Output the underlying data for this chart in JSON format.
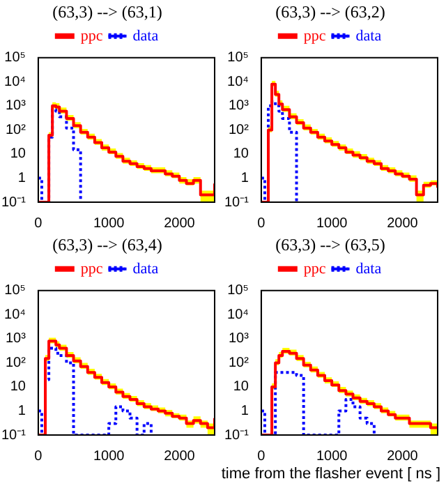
{
  "chart_data": [
    {
      "type": "step",
      "title": "(63,3) --> (63,1)",
      "x": [
        0,
        50,
        100,
        150,
        200,
        250,
        300,
        400,
        500,
        600,
        700,
        800,
        900,
        1000,
        1100,
        1200,
        1300,
        1400,
        1500,
        1600,
        1700,
        1800,
        1900,
        2000,
        2100,
        2200,
        2300,
        2400,
        2500
      ],
      "xlim": [
        0,
        2500
      ],
      "xticks": [
        0,
        1000,
        2000
      ],
      "ylim": [
        0.1,
        100000
      ],
      "yticks": [
        {
          "value": 0.1,
          "label": "10⁻¹"
        },
        {
          "value": 1,
          "label": "1"
        },
        {
          "value": 10,
          "label": "10"
        },
        {
          "value": 100,
          "label": "10²"
        },
        {
          "value": 1000,
          "label": "10³"
        },
        {
          "value": 10000,
          "label": "10⁴"
        },
        {
          "value": 100000,
          "label": "10⁵"
        }
      ],
      "log": true,
      "grid": false,
      "legend": "top",
      "series": [
        {
          "name": "ppc",
          "color": "#ff0000",
          "line_style": "solid",
          "values": [
            0.1,
            0.1,
            0.1,
            60,
            1000,
            900,
            600,
            300,
            150,
            80,
            50,
            30,
            18,
            12,
            8,
            5,
            4,
            3,
            2.5,
            2,
            2,
            1.5,
            1.2,
            0.8,
            0.6,
            0.8,
            0.2,
            0.2,
            0.6
          ],
          "upper": [
            0.1,
            0.1,
            0.1,
            80,
            1400,
            1300,
            850,
            420,
            210,
            110,
            70,
            42,
            25,
            17,
            11,
            7,
            5.5,
            4.2,
            3.5,
            2.8,
            2.8,
            2.1,
            1.7,
            1.1,
            0.9,
            1.1,
            0.3,
            0.3,
            0.8
          ],
          "lower": [
            0.1,
            0.1,
            0.1,
            45,
            800,
            700,
            480,
            240,
            120,
            64,
            40,
            24,
            14,
            10,
            6.4,
            4,
            3.2,
            2.4,
            2,
            1.6,
            1.6,
            1.2,
            1,
            0.6,
            0.5,
            0.6,
            0.1,
            0.1,
            0.5
          ]
        },
        {
          "name": "data",
          "color": "#0000ff",
          "line_style": "dotted",
          "values": [
            1,
            0.1,
            0.1,
            50,
            700,
            600,
            350,
            120,
            15,
            0.1,
            null,
            null,
            null,
            null,
            null,
            null,
            null,
            null,
            null,
            null,
            null,
            null,
            null,
            null,
            null,
            null,
            null,
            null,
            null
          ]
        }
      ]
    },
    {
      "type": "step",
      "title": "(63,3) --> (63,2)",
      "x": [
        0,
        50,
        100,
        150,
        200,
        250,
        300,
        400,
        500,
        600,
        700,
        800,
        900,
        1000,
        1100,
        1200,
        1300,
        1400,
        1500,
        1600,
        1700,
        1800,
        1900,
        2000,
        2100,
        2200,
        2300,
        2400,
        2500
      ],
      "xlim": [
        0,
        2500
      ],
      "xticks": [
        0,
        1000,
        2000
      ],
      "ylim": [
        0.1,
        100000
      ],
      "yticks": [
        {
          "value": 0.1,
          "label": "10⁻¹"
        },
        {
          "value": 1,
          "label": "1"
        },
        {
          "value": 10,
          "label": "10"
        },
        {
          "value": 100,
          "label": "10²"
        },
        {
          "value": 1000,
          "label": "10³"
        },
        {
          "value": 10000,
          "label": "10⁴"
        },
        {
          "value": 100000,
          "label": "10⁵"
        }
      ],
      "log": true,
      "grid": false,
      "legend": "top",
      "series": [
        {
          "name": "ppc",
          "color": "#ff0000",
          "line_style": "solid",
          "values": [
            0.1,
            0.1,
            100,
            8000,
            3000,
            1200,
            700,
            350,
            200,
            120,
            80,
            50,
            35,
            25,
            18,
            12,
            9,
            7,
            5,
            4,
            2.5,
            2,
            1.5,
            1.2,
            0.9,
            0.2,
            0.5,
            0.6,
            0.4
          ],
          "upper": [
            0.1,
            0.1,
            140,
            11000,
            4200,
            1700,
            1000,
            490,
            280,
            170,
            110,
            70,
            49,
            35,
            25,
            17,
            13,
            10,
            7,
            5.6,
            3.5,
            2.8,
            2.1,
            1.7,
            1.3,
            0.3,
            0.7,
            0.8,
            0.6
          ],
          "lower": [
            0.1,
            0.1,
            80,
            6400,
            2400,
            960,
            560,
            280,
            160,
            96,
            64,
            40,
            28,
            20,
            14,
            10,
            7,
            5.6,
            4,
            3.2,
            2,
            1.6,
            1.2,
            1,
            0.7,
            0.1,
            0.4,
            0.5,
            0.3
          ]
        },
        {
          "name": "data",
          "color": "#0000ff",
          "line_style": "dotted",
          "values": [
            1,
            0.1,
            1000,
            1500,
            1000,
            600,
            300,
            80,
            0.1,
            null,
            null,
            null,
            null,
            null,
            null,
            null,
            null,
            null,
            null,
            null,
            null,
            null,
            null,
            null,
            null,
            null,
            null,
            null,
            null
          ]
        }
      ]
    },
    {
      "type": "step",
      "title": "(63,3) --> (63,4)",
      "x": [
        0,
        50,
        100,
        150,
        200,
        250,
        300,
        400,
        500,
        600,
        700,
        800,
        900,
        1000,
        1100,
        1200,
        1300,
        1400,
        1500,
        1600,
        1700,
        1800,
        1900,
        2000,
        2100,
        2200,
        2300,
        2400,
        2500
      ],
      "xlim": [
        0,
        2500
      ],
      "xticks": [
        0,
        1000,
        2000
      ],
      "ylim": [
        0.1,
        100000
      ],
      "yticks": [
        {
          "value": 0.1,
          "label": "10⁻¹"
        },
        {
          "value": 1,
          "label": "1"
        },
        {
          "value": 10,
          "label": "10"
        },
        {
          "value": 100,
          "label": "10²"
        },
        {
          "value": 1000,
          "label": "10³"
        },
        {
          "value": 10000,
          "label": "10⁴"
        },
        {
          "value": 100000,
          "label": "10⁵"
        }
      ],
      "log": true,
      "grid": false,
      "legend": "top",
      "series": [
        {
          "name": "ppc",
          "color": "#ff0000",
          "line_style": "solid",
          "values": [
            0.1,
            0.1,
            150,
            800,
            800,
            550,
            400,
            200,
            120,
            70,
            40,
            25,
            15,
            10,
            6,
            4,
            3,
            2,
            1.5,
            1.2,
            1,
            0.8,
            0.6,
            0.5,
            0.3,
            0.4,
            0.3,
            0.2,
            0.5
          ],
          "upper": [
            0.1,
            0.1,
            210,
            1100,
            1100,
            770,
            560,
            280,
            170,
            100,
            56,
            35,
            21,
            14,
            8.4,
            5.6,
            4.2,
            2.8,
            2.1,
            1.7,
            1.4,
            1.1,
            0.8,
            0.7,
            0.4,
            0.6,
            0.4,
            0.3,
            0.7
          ],
          "lower": [
            0.1,
            0.1,
            120,
            640,
            640,
            440,
            320,
            160,
            96,
            56,
            32,
            20,
            12,
            8,
            4.8,
            3.2,
            2.4,
            1.6,
            1.2,
            1,
            0.8,
            0.6,
            0.5,
            0.4,
            0.2,
            0.3,
            0.2,
            0.1,
            0.4
          ]
        },
        {
          "name": "data",
          "color": "#0000ff",
          "line_style": "dotted",
          "values": [
            1,
            0.1,
            20,
            400,
            400,
            250,
            200,
            100,
            0.1,
            0.1,
            0.1,
            0.1,
            0.1,
            0.3,
            1.5,
            1,
            0.5,
            0.1,
            0.3,
            0.1,
            null,
            null,
            null,
            null,
            null,
            null,
            null,
            null,
            null
          ]
        }
      ]
    },
    {
      "type": "step",
      "title": "(63,3) --> (63,5)",
      "xlabel": "time from the flasher event [ ns ]",
      "x": [
        0,
        50,
        100,
        150,
        200,
        250,
        300,
        400,
        500,
        600,
        700,
        800,
        900,
        1000,
        1100,
        1200,
        1300,
        1400,
        1500,
        1600,
        1700,
        1800,
        1900,
        2000,
        2100,
        2200,
        2300,
        2400,
        2500
      ],
      "xlim": [
        0,
        2500
      ],
      "xticks": [
        0,
        1000,
        2000
      ],
      "ylim": [
        0.1,
        100000
      ],
      "yticks": [
        {
          "value": 0.1,
          "label": "10⁻¹"
        },
        {
          "value": 1,
          "label": "1"
        },
        {
          "value": 10,
          "label": "10"
        },
        {
          "value": 100,
          "label": "10²"
        },
        {
          "value": 1000,
          "label": "10³"
        },
        {
          "value": 10000,
          "label": "10⁴"
        },
        {
          "value": 100000,
          "label": "10⁵"
        }
      ],
      "log": true,
      "grid": false,
      "legend": "top",
      "series": [
        {
          "name": "ppc",
          "color": "#ff0000",
          "line_style": "solid",
          "values": [
            0.1,
            0.1,
            0.1,
            10,
            100,
            200,
            300,
            250,
            150,
            80,
            50,
            30,
            18,
            12,
            7,
            5,
            3.5,
            2.5,
            2,
            1.5,
            1,
            0.7,
            0.5,
            0.5,
            0.3,
            0.3,
            0.3,
            0.2,
            0.2
          ],
          "upper": [
            0.1,
            0.1,
            0.1,
            14,
            140,
            280,
            420,
            350,
            210,
            110,
            70,
            42,
            25,
            17,
            10,
            7,
            4.9,
            3.5,
            2.8,
            2.1,
            1.4,
            1,
            0.7,
            0.7,
            0.4,
            0.4,
            0.4,
            0.3,
            0.3
          ],
          "lower": [
            0.1,
            0.1,
            0.1,
            8,
            80,
            160,
            240,
            200,
            120,
            64,
            40,
            24,
            14,
            10,
            5.6,
            4,
            2.8,
            2,
            1.6,
            1.2,
            0.8,
            0.6,
            0.4,
            0.4,
            0.2,
            0.2,
            0.2,
            0.1,
            0.1
          ]
        },
        {
          "name": "data",
          "color": "#0000ff",
          "line_style": "dotted",
          "values": [
            1,
            0.1,
            0.1,
            0.1,
            40,
            40,
            40,
            40,
            30,
            0.1,
            0.1,
            0.1,
            0.1,
            0.1,
            1,
            3,
            1.5,
            0.5,
            0.3,
            0.1,
            null,
            null,
            null,
            null,
            null,
            null,
            null,
            null,
            null
          ]
        }
      ]
    }
  ]
}
